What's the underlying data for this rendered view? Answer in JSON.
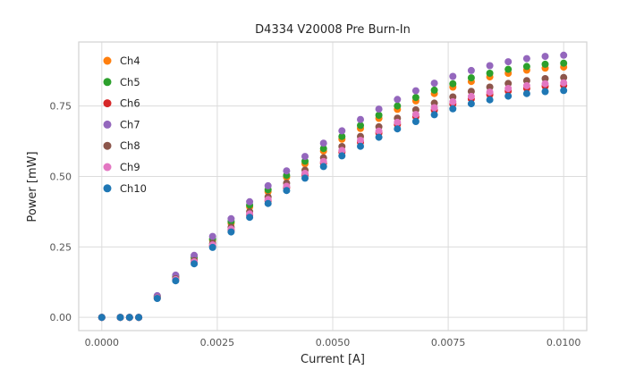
{
  "chart_data": {
    "type": "scatter",
    "title": "D4334 V20008 Pre Burn-In",
    "xlabel": "Current [A]",
    "ylabel": "Power [mW]",
    "xlim": [
      -0.0005,
      0.0105
    ],
    "ylim": [
      -0.047,
      0.977
    ],
    "xticks": [
      0.0,
      0.0025,
      0.005,
      0.0075,
      0.01
    ],
    "xtick_labels": [
      "0.0000",
      "0.0025",
      "0.0050",
      "0.0075",
      "0.0100"
    ],
    "yticks": [
      0.0,
      0.25,
      0.5,
      0.75
    ],
    "ytick_labels": [
      "0.00",
      "0.25",
      "0.50",
      "0.75"
    ],
    "grid": true,
    "legend_position": "upper-left",
    "grid_color": "#dcdcdc",
    "border_color": "#d3d3d3",
    "marker_radius": 4,
    "x": [
      0.0,
      0.0004,
      0.0006,
      0.0008,
      0.0012,
      0.0016,
      0.002,
      0.0024,
      0.0028,
      0.0032,
      0.0036,
      0.004,
      0.0044,
      0.0048,
      0.0052,
      0.0056,
      0.006,
      0.0064,
      0.0068,
      0.0072,
      0.0076,
      0.008,
      0.0084,
      0.0088,
      0.0092,
      0.0096,
      0.01
    ],
    "series": [
      {
        "name": "Ch4",
        "color": "#ff7f0e",
        "values": [
          0,
          0,
          0,
          0,
          0.074,
          0.143,
          0.21,
          0.274,
          0.334,
          0.392,
          0.446,
          0.497,
          0.545,
          0.59,
          0.632,
          0.67,
          0.706,
          0.738,
          0.768,
          0.794,
          0.817,
          0.837,
          0.853,
          0.866,
          0.877,
          0.884,
          0.888
        ]
      },
      {
        "name": "Ch5",
        "color": "#2ca02c",
        "values": [
          0,
          0,
          0,
          0,
          0.075,
          0.146,
          0.213,
          0.278,
          0.34,
          0.398,
          0.453,
          0.504,
          0.554,
          0.599,
          0.642,
          0.681,
          0.717,
          0.75,
          0.78,
          0.806,
          0.829,
          0.85,
          0.866,
          0.88,
          0.89,
          0.898,
          0.902
        ]
      },
      {
        "name": "Ch6",
        "color": "#d62728",
        "values": [
          0,
          0,
          0,
          0,
          0.068,
          0.133,
          0.195,
          0.254,
          0.31,
          0.363,
          0.413,
          0.46,
          0.505,
          0.547,
          0.586,
          0.621,
          0.654,
          0.684,
          0.712,
          0.735,
          0.757,
          0.775,
          0.79,
          0.803,
          0.812,
          0.82,
          0.823
        ]
      },
      {
        "name": "Ch7",
        "color": "#9467bd",
        "values": [
          0,
          0,
          0,
          0,
          0.077,
          0.15,
          0.22,
          0.287,
          0.35,
          0.41,
          0.467,
          0.52,
          0.571,
          0.618,
          0.662,
          0.702,
          0.739,
          0.773,
          0.804,
          0.831,
          0.855,
          0.876,
          0.893,
          0.907,
          0.918,
          0.926,
          0.93
        ]
      },
      {
        "name": "Ch8",
        "color": "#8c564b",
        "values": [
          0,
          0,
          0,
          0,
          0.07,
          0.137,
          0.201,
          0.263,
          0.32,
          0.375,
          0.427,
          0.476,
          0.522,
          0.566,
          0.606,
          0.642,
          0.676,
          0.707,
          0.736,
          0.76,
          0.782,
          0.802,
          0.817,
          0.83,
          0.84,
          0.847,
          0.851
        ]
      },
      {
        "name": "Ch9",
        "color": "#e377c2",
        "values": [
          0,
          0,
          0,
          0,
          0.069,
          0.134,
          0.197,
          0.257,
          0.313,
          0.367,
          0.418,
          0.465,
          0.511,
          0.553,
          0.592,
          0.628,
          0.661,
          0.692,
          0.72,
          0.744,
          0.765,
          0.784,
          0.799,
          0.812,
          0.822,
          0.829,
          0.832
        ]
      },
      {
        "name": "Ch10",
        "color": "#1f77b4",
        "values": [
          0,
          0,
          0,
          0,
          0.067,
          0.13,
          0.19,
          0.248,
          0.303,
          0.355,
          0.404,
          0.45,
          0.494,
          0.535,
          0.573,
          0.607,
          0.639,
          0.669,
          0.695,
          0.719,
          0.74,
          0.758,
          0.772,
          0.785,
          0.794,
          0.801,
          0.805
        ]
      }
    ]
  }
}
